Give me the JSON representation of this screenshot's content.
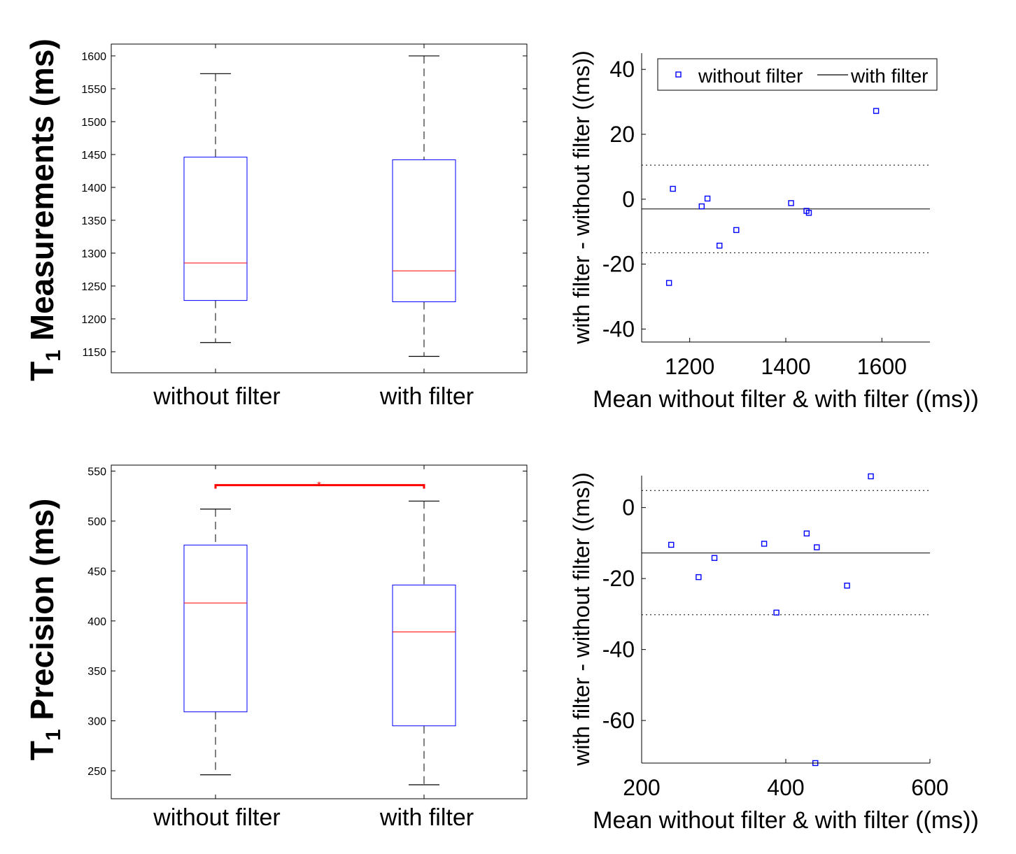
{
  "colors": {
    "box": "#0000ff",
    "median": "#ff0000",
    "whisker": "#000000",
    "marker": "#0000ff",
    "significance": "#ff0000",
    "axis": "#000000"
  },
  "chart_data": [
    {
      "id": "box-measurements",
      "type": "box",
      "ylabel_main": "T",
      "ylabel_sub": "1",
      "ylabel_rest": " Measurements (ms)",
      "categories": [
        "without filter",
        "with filter"
      ],
      "ylim": [
        1118,
        1618
      ],
      "yticks": [
        1150,
        1200,
        1250,
        1300,
        1350,
        1400,
        1450,
        1500,
        1550,
        1600
      ],
      "boxes": [
        {
          "min": 1164,
          "q1": 1228,
          "median": 1285,
          "q3": 1446,
          "max": 1573
        },
        {
          "min": 1143,
          "q1": 1226,
          "median": 1273,
          "q3": 1442,
          "max": 1600
        }
      ]
    },
    {
      "id": "ba-measurements",
      "type": "scatter",
      "xlabel": "Mean without filter & with filter ((ms))",
      "ylabel": "with filter - without filter ((ms))",
      "xlim": [
        1100,
        1700
      ],
      "ylim": [
        -44,
        45
      ],
      "xticks": [
        1200,
        1400,
        1600
      ],
      "yticks": [
        -40,
        -20,
        0,
        20,
        40
      ],
      "legend": {
        "marker_label": "without filter",
        "line_label": "with filter",
        "placement": "top-right"
      },
      "mean_line": -3,
      "limits": [
        -16.5,
        10.5
      ],
      "points": [
        {
          "x": 1157,
          "y": -25.8
        },
        {
          "x": 1165,
          "y": 3.2
        },
        {
          "x": 1225,
          "y": -2.2
        },
        {
          "x": 1237,
          "y": 0.2
        },
        {
          "x": 1262,
          "y": -14.3
        },
        {
          "x": 1297,
          "y": -9.5
        },
        {
          "x": 1411,
          "y": -1.2
        },
        {
          "x": 1443,
          "y": -3.6
        },
        {
          "x": 1448,
          "y": -4.2
        },
        {
          "x": 1588,
          "y": 27.2
        }
      ]
    },
    {
      "id": "box-precision",
      "type": "box",
      "ylabel_main": "T",
      "ylabel_sub": "1",
      "ylabel_rest": " Precision (ms)",
      "categories": [
        "without filter",
        "with filter"
      ],
      "ylim": [
        222,
        556
      ],
      "yticks": [
        250,
        300,
        350,
        400,
        450,
        500,
        550
      ],
      "significance": {
        "label": "*",
        "y": 536
      },
      "boxes": [
        {
          "min": 246,
          "q1": 309,
          "median": 418,
          "q3": 476,
          "max": 512
        },
        {
          "min": 236,
          "q1": 295,
          "median": 389,
          "q3": 436,
          "max": 520
        }
      ]
    },
    {
      "id": "ba-precision",
      "type": "scatter",
      "xlabel": "Mean without filter & with filter ((ms))",
      "ylabel": "with filter - without filter ((ms))",
      "xlim": [
        200,
        600
      ],
      "ylim": [
        -72,
        9
      ],
      "xticks": [
        200,
        400,
        600
      ],
      "yticks": [
        -60,
        -40,
        -20,
        0
      ],
      "mean_line": -12.8,
      "limits": [
        -30.2,
        4.8
      ],
      "points": [
        {
          "x": 241,
          "y": -10.5
        },
        {
          "x": 279,
          "y": -19.6
        },
        {
          "x": 301,
          "y": -14.2
        },
        {
          "x": 370,
          "y": -10.2
        },
        {
          "x": 387,
          "y": -29.6
        },
        {
          "x": 429,
          "y": -7.3
        },
        {
          "x": 441,
          "y": -72.0
        },
        {
          "x": 443,
          "y": -11.2
        },
        {
          "x": 485,
          "y": -22.0
        },
        {
          "x": 518,
          "y": 8.8
        }
      ]
    }
  ]
}
